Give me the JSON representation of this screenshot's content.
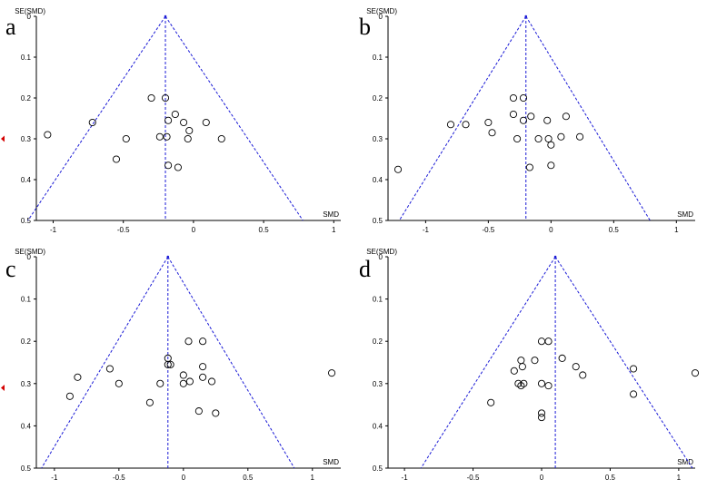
{
  "figure": {
    "colors": {
      "funnel": "#1a1ad6",
      "points": "#000000",
      "left_marker": "#d40000"
    }
  },
  "chart_data": [
    {
      "type": "scatter",
      "panel_label": "a",
      "ylabel": "SE(SMD)",
      "xlabel": "SMD",
      "xlim": [
        -1.12,
        1.05
      ],
      "ylim": [
        0,
        0.5
      ],
      "y_reversed": true,
      "xticks": [
        -1,
        -0.5,
        0,
        0.5,
        1
      ],
      "xtick_labels": [
        "-1",
        "-0.5",
        "0",
        "0.5",
        "1"
      ],
      "yticks": [
        0,
        0.1,
        0.2,
        0.3,
        0.4,
        0.5
      ],
      "ytick_labels": [
        "0",
        "0.1",
        "0.2",
        "0.3",
        "0.4",
        "0.5"
      ],
      "pooled_smd": -0.2,
      "funnel_bottom": [
        -1.18,
        0.78
      ],
      "left_marker_se": 0.3,
      "points": [
        {
          "x": -1.04,
          "y": 0.29
        },
        {
          "x": -0.72,
          "y": 0.26
        },
        {
          "x": -0.48,
          "y": 0.3
        },
        {
          "x": -0.55,
          "y": 0.35
        },
        {
          "x": -0.3,
          "y": 0.2
        },
        {
          "x": -0.2,
          "y": 0.2
        },
        {
          "x": -0.24,
          "y": 0.295
        },
        {
          "x": -0.18,
          "y": 0.255
        },
        {
          "x": -0.19,
          "y": 0.295
        },
        {
          "x": -0.13,
          "y": 0.24
        },
        {
          "x": -0.07,
          "y": 0.26
        },
        {
          "x": -0.03,
          "y": 0.28
        },
        {
          "x": -0.04,
          "y": 0.3
        },
        {
          "x": 0.09,
          "y": 0.26
        },
        {
          "x": 0.2,
          "y": 0.3
        },
        {
          "x": -0.18,
          "y": 0.365
        },
        {
          "x": -0.11,
          "y": 0.37
        }
      ]
    },
    {
      "type": "scatter",
      "panel_label": "b",
      "ylabel": "SE(SMD)",
      "xlabel": "SMD",
      "xlim": [
        -1.3,
        1.15
      ],
      "ylim": [
        0,
        0.5
      ],
      "y_reversed": true,
      "xticks": [
        -1,
        -0.5,
        0,
        0.5,
        1
      ],
      "xtick_labels": [
        "-1",
        "-0.5",
        "0",
        "0.5",
        "1"
      ],
      "yticks": [
        0,
        0.1,
        0.2,
        0.3,
        0.4,
        0.5
      ],
      "ytick_labels": [
        "0",
        "0.1",
        "0.2",
        "0.3",
        "0.4",
        "0.5"
      ],
      "pooled_smd": -0.2,
      "funnel_bottom": [
        -1.21,
        0.79
      ],
      "left_marker_se": null,
      "points": [
        {
          "x": -1.22,
          "y": 0.375
        },
        {
          "x": -0.8,
          "y": 0.265
        },
        {
          "x": -0.68,
          "y": 0.265
        },
        {
          "x": -0.5,
          "y": 0.26
        },
        {
          "x": -0.47,
          "y": 0.285
        },
        {
          "x": -0.3,
          "y": 0.2
        },
        {
          "x": -0.22,
          "y": 0.2
        },
        {
          "x": -0.3,
          "y": 0.24
        },
        {
          "x": -0.22,
          "y": 0.255
        },
        {
          "x": -0.16,
          "y": 0.245
        },
        {
          "x": -0.27,
          "y": 0.3
        },
        {
          "x": -0.1,
          "y": 0.3
        },
        {
          "x": -0.03,
          "y": 0.255
        },
        {
          "x": -0.02,
          "y": 0.3
        },
        {
          "x": 0.0,
          "y": 0.315
        },
        {
          "x": 0.08,
          "y": 0.295
        },
        {
          "x": 0.12,
          "y": 0.245
        },
        {
          "x": 0.23,
          "y": 0.295
        },
        {
          "x": -0.17,
          "y": 0.37
        },
        {
          "x": 0.0,
          "y": 0.365
        }
      ]
    },
    {
      "type": "scatter",
      "panel_label": "c",
      "ylabel": "SE(SMD)",
      "xlabel": "SMD",
      "xlim": [
        -1.14,
        1.22
      ],
      "ylim": [
        0,
        0.5
      ],
      "y_reversed": true,
      "xticks": [
        -1,
        -0.5,
        0,
        0.5,
        1
      ],
      "xtick_labels": [
        "-1",
        "-0.5",
        "0",
        "0.5",
        "1"
      ],
      "yticks": [
        0,
        0.1,
        0.2,
        0.3,
        0.4,
        0.5
      ],
      "ytick_labels": [
        "0",
        "0.1",
        "0.2",
        "0.3",
        "0.4",
        "0.5"
      ],
      "pooled_smd": -0.12,
      "funnel_bottom": [
        -1.1,
        0.86
      ],
      "left_marker_se": 0.31,
      "points": [
        {
          "x": -0.88,
          "y": 0.33
        },
        {
          "x": -0.82,
          "y": 0.285
        },
        {
          "x": -0.57,
          "y": 0.265
        },
        {
          "x": -0.5,
          "y": 0.3
        },
        {
          "x": -0.26,
          "y": 0.345
        },
        {
          "x": -0.18,
          "y": 0.3
        },
        {
          "x": -0.12,
          "y": 0.24
        },
        {
          "x": -0.12,
          "y": 0.255
        },
        {
          "x": -0.1,
          "y": 0.255
        },
        {
          "x": 0.04,
          "y": 0.2
        },
        {
          "x": 0.15,
          "y": 0.2
        },
        {
          "x": 0.0,
          "y": 0.28
        },
        {
          "x": 0.0,
          "y": 0.3
        },
        {
          "x": 0.05,
          "y": 0.295
        },
        {
          "x": 0.15,
          "y": 0.26
        },
        {
          "x": 0.22,
          "y": 0.295
        },
        {
          "x": 0.15,
          "y": 0.285
        },
        {
          "x": 0.12,
          "y": 0.365
        },
        {
          "x": 0.25,
          "y": 0.37
        },
        {
          "x": 1.15,
          "y": 0.275
        }
      ]
    },
    {
      "type": "scatter",
      "panel_label": "d",
      "ylabel": "SE(SMD)",
      "xlabel": "SMD",
      "xlim": [
        -1.12,
        1.12
      ],
      "ylim": [
        0,
        0.5
      ],
      "y_reversed": true,
      "xticks": [
        -1,
        -0.5,
        0,
        0.5,
        1
      ],
      "xtick_labels": [
        "-1",
        "-0.5",
        "0",
        "0.5",
        "1"
      ],
      "yticks": [
        0,
        0.1,
        0.2,
        0.3,
        0.4,
        0.5
      ],
      "ytick_labels": [
        "0",
        "0.1",
        "0.2",
        "0.3",
        "0.4",
        "0.5"
      ],
      "pooled_smd": 0.1,
      "funnel_bottom": [
        -0.88,
        1.1
      ],
      "left_marker_se": null,
      "points": [
        {
          "x": -0.37,
          "y": 0.345
        },
        {
          "x": -0.2,
          "y": 0.27
        },
        {
          "x": -0.17,
          "y": 0.3
        },
        {
          "x": -0.15,
          "y": 0.245
        },
        {
          "x": -0.14,
          "y": 0.26
        },
        {
          "x": -0.13,
          "y": 0.3
        },
        {
          "x": -0.15,
          "y": 0.305
        },
        {
          "x": -0.05,
          "y": 0.245
        },
        {
          "x": 0.0,
          "y": 0.2
        },
        {
          "x": 0.05,
          "y": 0.2
        },
        {
          "x": 0.15,
          "y": 0.24
        },
        {
          "x": 0.0,
          "y": 0.3
        },
        {
          "x": 0.05,
          "y": 0.305
        },
        {
          "x": 0.25,
          "y": 0.26
        },
        {
          "x": 0.3,
          "y": 0.28
        },
        {
          "x": 0.0,
          "y": 0.37
        },
        {
          "x": 0.0,
          "y": 0.38
        },
        {
          "x": 0.67,
          "y": 0.265
        },
        {
          "x": 0.67,
          "y": 0.325
        },
        {
          "x": 1.12,
          "y": 0.275
        }
      ]
    }
  ]
}
